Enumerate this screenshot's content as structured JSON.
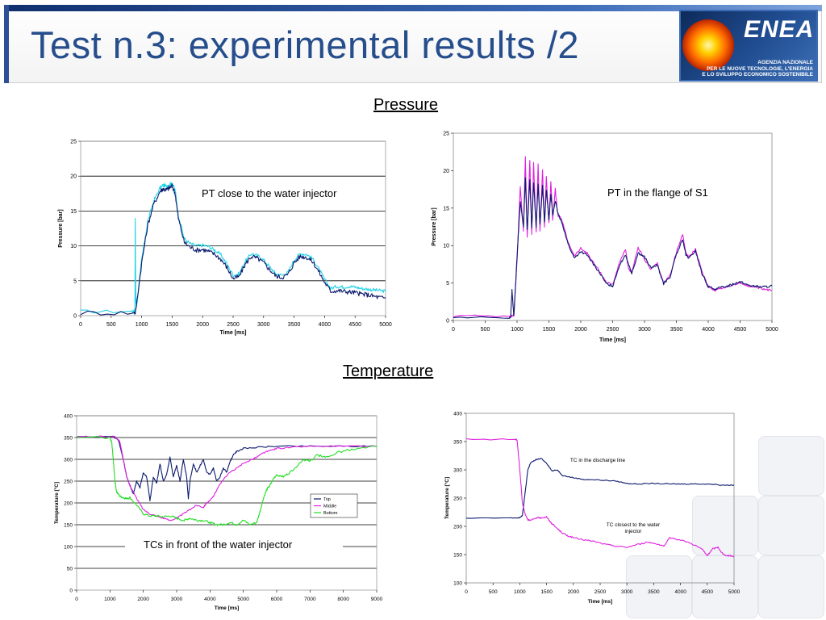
{
  "slide": {
    "title": "Test n.3: experimental results /2",
    "logo_text": "ENEA",
    "logo_subtext": [
      "AGENZIA NAZIONALE",
      "PER LE NUOVE TECNOLOGIE, L'ENERGIA",
      "E LO SVILUPPO ECONOMICO SOSTENIBILE"
    ],
    "sections": {
      "pressure": "Pressure",
      "temperature": "Temperature"
    }
  },
  "colors": {
    "title": "#264d8c",
    "navy": "#0b1a6e",
    "cyan": "#22d3e6",
    "magenta": "#e020e0",
    "green": "#22dd22"
  },
  "chart_data": [
    {
      "type": "line",
      "xlabel": "Time [ms]",
      "ylabel": "Pressure [bar]",
      "xlim": [
        0,
        5000
      ],
      "ylim": [
        0,
        25
      ],
      "xticks": [
        0,
        500,
        1000,
        1500,
        2000,
        2500,
        3000,
        3500,
        4000,
        4500,
        5000
      ],
      "yticks": [
        0,
        5,
        10,
        15,
        20,
        25
      ],
      "grid": "horizontal",
      "annotation": "PT close to the water injector",
      "series": [
        {
          "color": "#22d3e6",
          "noise": 0.25,
          "x": [
            0,
            850,
            880,
            890,
            895,
            905,
            920,
            1000,
            1100,
            1200,
            1300,
            1350,
            1400,
            1450,
            1500,
            1550,
            1600,
            1700,
            1800,
            1900,
            2000,
            2100,
            2200,
            2300,
            2400,
            2500,
            2600,
            2700,
            2800,
            2900,
            3000,
            3100,
            3200,
            3300,
            3400,
            3500,
            3600,
            3700,
            3800,
            3900,
            4000,
            4100,
            4200,
            4300,
            4400,
            4500,
            4600,
            4700,
            4800,
            4900,
            5000
          ],
          "y": [
            0.6,
            0.6,
            0.6,
            1.0,
            14.0,
            2.0,
            1.5,
            8.0,
            13.5,
            16.5,
            18.3,
            18.7,
            18.6,
            18.8,
            19.0,
            18.0,
            14.5,
            11.0,
            10.3,
            10.0,
            10.1,
            9.9,
            9.4,
            8.7,
            7.4,
            5.8,
            6.0,
            7.8,
            8.9,
            8.6,
            8.0,
            7.0,
            6.0,
            5.8,
            6.2,
            8.0,
            8.9,
            8.8,
            8.2,
            6.8,
            5.2,
            3.9,
            4.2,
            4.1,
            4.2,
            4.1,
            3.9,
            3.8,
            3.7,
            3.6,
            3.5
          ]
        },
        {
          "color": "#0b1a6e",
          "noise": 0.35,
          "x": [
            0,
            880,
            900,
            1000,
            1100,
            1200,
            1300,
            1350,
            1400,
            1450,
            1500,
            1550,
            1600,
            1700,
            1800,
            1900,
            2000,
            2100,
            2200,
            2300,
            2400,
            2500,
            2600,
            2700,
            2800,
            2900,
            3000,
            3100,
            3200,
            3300,
            3400,
            3500,
            3600,
            3700,
            3800,
            3900,
            4000,
            4100,
            4200,
            4300,
            4400,
            4500,
            4600,
            4700,
            4800,
            4900,
            5000
          ],
          "y": [
            0.4,
            0.4,
            0.5,
            7.5,
            13.0,
            16.0,
            17.8,
            18.2,
            18.0,
            18.3,
            18.6,
            17.5,
            14.0,
            10.5,
            9.8,
            9.4,
            9.5,
            9.2,
            8.8,
            8.1,
            6.9,
            5.3,
            5.6,
            7.4,
            8.5,
            8.2,
            7.6,
            6.6,
            5.7,
            5.5,
            5.9,
            7.6,
            8.5,
            8.4,
            7.8,
            6.4,
            4.8,
            3.5,
            3.6,
            3.5,
            3.4,
            3.3,
            3.1,
            3.0,
            2.8,
            2.6,
            2.5
          ]
        }
      ]
    },
    {
      "type": "line",
      "xlabel": "Time [ms]",
      "ylabel": "Pressure [bar]",
      "xlim": [
        0,
        5000
      ],
      "ylim": [
        0,
        25
      ],
      "xticks": [
        0,
        500,
        1000,
        1500,
        2000,
        2500,
        3000,
        3500,
        4000,
        4500,
        5000
      ],
      "yticks": [
        0,
        5,
        10,
        15,
        20,
        25
      ],
      "grid": "none",
      "annotation": "PT in the flange of S1",
      "series": [
        {
          "color": "#e020e0",
          "noise": 0.15,
          "x": [
            0,
            900,
            920,
            950,
            1000,
            1050,
            1100,
            1130,
            1160,
            1200,
            1230,
            1260,
            1300,
            1330,
            1360,
            1400,
            1430,
            1460,
            1500,
            1530,
            1560,
            1600,
            1640,
            1700,
            1800,
            1900,
            2000,
            2100,
            2200,
            2300,
            2400,
            2500,
            2600,
            2700,
            2750,
            2800,
            2900,
            3000,
            3100,
            3200,
            3300,
            3400,
            3500,
            3600,
            3650,
            3700,
            3800,
            3900,
            4000,
            4100,
            4200,
            4300,
            4400,
            4500,
            4600,
            4700,
            4800,
            4900,
            5000
          ],
          "y": [
            0.6,
            0.6,
            0.6,
            0.8,
            8.0,
            18.0,
            12.0,
            21.8,
            11.0,
            21.5,
            11.5,
            21.0,
            11.8,
            20.8,
            12.0,
            20.0,
            12.5,
            19.2,
            13.0,
            18.6,
            13.5,
            17.5,
            14.0,
            13.5,
            10.5,
            8.6,
            9.6,
            9.0,
            7.7,
            6.5,
            5.1,
            4.8,
            7.5,
            9.5,
            6.8,
            6.5,
            9.7,
            8.2,
            6.8,
            7.6,
            5.0,
            6.0,
            9.1,
            11.5,
            9.0,
            8.5,
            9.5,
            6.5,
            4.6,
            4.0,
            4.3,
            4.5,
            4.8,
            5.0,
            4.7,
            4.5,
            4.3,
            4.1,
            4.0
          ]
        },
        {
          "color": "#0b1a6e",
          "noise": 0.15,
          "x": [
            0,
            880,
            900,
            920,
            950,
            1000,
            1050,
            1100,
            1130,
            1160,
            1200,
            1230,
            1260,
            1300,
            1330,
            1360,
            1400,
            1430,
            1460,
            1500,
            1530,
            1560,
            1600,
            1640,
            1700,
            1800,
            1900,
            2000,
            2100,
            2200,
            2300,
            2400,
            2500,
            2600,
            2700,
            2800,
            2900,
            3000,
            3100,
            3200,
            3300,
            3400,
            3500,
            3600,
            3650,
            3700,
            3800,
            3900,
            4000,
            4100,
            4200,
            4300,
            4400,
            4500,
            4600,
            4700,
            4800,
            4900,
            5000
          ],
          "y": [
            0.4,
            0.4,
            0.5,
            4.0,
            0.5,
            8.5,
            16.0,
            12.5,
            19.0,
            12.0,
            18.8,
            12.3,
            18.5,
            12.5,
            18.3,
            12.8,
            18.0,
            13.0,
            17.5,
            13.4,
            17.0,
            14.0,
            16.0,
            14.3,
            13.2,
            10.2,
            8.3,
            9.2,
            8.7,
            7.5,
            6.3,
            4.9,
            4.6,
            7.2,
            8.8,
            6.3,
            9.0,
            8.5,
            7.0,
            7.4,
            4.9,
            5.8,
            8.8,
            10.8,
            8.7,
            8.3,
            9.3,
            6.3,
            4.5,
            4.2,
            4.4,
            4.6,
            4.9,
            5.2,
            4.8,
            4.6,
            4.5,
            4.5,
            4.6
          ]
        }
      ]
    },
    {
      "type": "line",
      "xlabel": "Time [ms]",
      "ylabel": "Temperature [°C]",
      "xlim": [
        0,
        9000
      ],
      "ylim": [
        0,
        400
      ],
      "xticks": [
        0,
        1000,
        2000,
        3000,
        4000,
        5000,
        6000,
        7000,
        8000,
        9000
      ],
      "yticks": [
        0,
        50,
        100,
        150,
        200,
        250,
        300,
        350,
        400
      ],
      "grid": "horizontal",
      "annotation": "TCs in front of the water injector",
      "legend": {
        "position": "right",
        "entries": [
          {
            "name": "Top",
            "color": "#0b1a6e"
          },
          {
            "name": "Middle",
            "color": "#e020e0"
          },
          {
            "name": "Bottom",
            "color": "#22dd22"
          }
        ]
      },
      "series": [
        {
          "name": "Top",
          "color": "#0b1a6e",
          "noise": 1.5,
          "x": [
            0,
            1100,
            1250,
            1400,
            1500,
            1600,
            1700,
            1800,
            1900,
            2000,
            2100,
            2200,
            2300,
            2400,
            2500,
            2600,
            2700,
            2800,
            2900,
            3000,
            3100,
            3200,
            3300,
            3350,
            3400,
            3500,
            3600,
            3700,
            3800,
            3900,
            4000,
            4100,
            4200,
            4300,
            4400,
            4500,
            4600,
            4700,
            4800,
            5000,
            5500,
            6000,
            7000,
            8000,
            9000
          ],
          "y": [
            352,
            352,
            345,
            300,
            260,
            240,
            220,
            250,
            235,
            270,
            260,
            205,
            260,
            245,
            290,
            250,
            265,
            305,
            260,
            285,
            250,
            300,
            260,
            210,
            250,
            290,
            270,
            285,
            300,
            270,
            265,
            280,
            250,
            260,
            280,
            270,
            295,
            310,
            318,
            325,
            328,
            330,
            330,
            330,
            330
          ]
        },
        {
          "name": "Middle",
          "color": "#e020e0",
          "noise": 1.5,
          "x": [
            0,
            1150,
            1300,
            1400,
            1500,
            1600,
            1800,
            2000,
            2200,
            2400,
            2600,
            2800,
            3000,
            3200,
            3400,
            3600,
            3800,
            3900,
            4000,
            4100,
            4200,
            4400,
            4600,
            4800,
            5000,
            5200,
            5400,
            5600,
            5800,
            6000,
            6500,
            7000,
            8000,
            9000
          ],
          "y": [
            352,
            352,
            340,
            300,
            260,
            240,
            210,
            185,
            175,
            170,
            165,
            160,
            165,
            175,
            185,
            195,
            190,
            200,
            205,
            215,
            230,
            255,
            270,
            280,
            290,
            298,
            305,
            315,
            320,
            325,
            328,
            330,
            330,
            330
          ]
        },
        {
          "name": "Bottom",
          "color": "#22dd22",
          "noise": 2.5,
          "x": [
            0,
            1000,
            1050,
            1100,
            1150,
            1200,
            1300,
            1400,
            1500,
            1600,
            1800,
            2000,
            2200,
            2400,
            2600,
            2800,
            3000,
            3200,
            3400,
            3600,
            3800,
            4000,
            4200,
            4400,
            4600,
            4800,
            5000,
            5200,
            5400,
            5500,
            5600,
            5700,
            5800,
            5900,
            6000,
            6200,
            6400,
            6600,
            6800,
            7000,
            7200,
            7500,
            8000,
            8500,
            9000
          ],
          "y": [
            350,
            350,
            340,
            300,
            250,
            225,
            215,
            212,
            210,
            212,
            195,
            175,
            170,
            170,
            168,
            170,
            165,
            160,
            165,
            160,
            160,
            155,
            150,
            150,
            155,
            150,
            160,
            150,
            155,
            180,
            210,
            230,
            240,
            255,
            265,
            260,
            270,
            285,
            300,
            295,
            310,
            305,
            320,
            325,
            330
          ]
        }
      ]
    },
    {
      "type": "line",
      "xlabel": "Time [ms]",
      "ylabel": "Temperature [°C]",
      "xlim": [
        0,
        5000
      ],
      "ylim": [
        100,
        400
      ],
      "xticks": [
        0,
        500,
        1000,
        1500,
        2000,
        2500,
        3000,
        3500,
        4000,
        4500,
        5000
      ],
      "yticks": [
        100,
        150,
        200,
        250,
        300,
        350,
        400
      ],
      "grid": "none",
      "annotations": [
        "TC in the discharge line",
        "TC closest to the water injector"
      ],
      "series": [
        {
          "color": "#0b1a6e",
          "noise": 0.8,
          "x": [
            0,
            800,
            1000,
            1050,
            1100,
            1150,
            1200,
            1300,
            1400,
            1500,
            1600,
            1700,
            1800,
            2000,
            2200,
            2500,
            2800,
            3000,
            3200,
            3500,
            3800,
            4000,
            4200,
            4500,
            4800,
            5000
          ],
          "y": [
            214,
            215,
            215,
            220,
            260,
            300,
            312,
            318,
            320,
            312,
            298,
            300,
            290,
            286,
            283,
            282,
            280,
            276,
            275,
            276,
            275,
            275,
            275,
            275,
            273,
            273
          ]
        },
        {
          "color": "#e020e0",
          "noise": 1.2,
          "x": [
            0,
            900,
            950,
            1000,
            1050,
            1100,
            1150,
            1200,
            1300,
            1400,
            1500,
            1550,
            1600,
            1700,
            1800,
            1900,
            2000,
            2200,
            2400,
            2600,
            2800,
            3000,
            3200,
            3400,
            3600,
            3700,
            3800,
            4000,
            4200,
            4400,
            4500,
            4600,
            4700,
            4800,
            4900,
            5000
          ],
          "y": [
            354,
            354,
            353,
            300,
            240,
            222,
            212,
            210,
            215,
            215,
            217,
            210,
            205,
            196,
            188,
            183,
            180,
            176,
            173,
            168,
            165,
            163,
            168,
            172,
            168,
            165,
            180,
            176,
            170,
            160,
            148,
            160,
            163,
            150,
            148,
            147
          ]
        }
      ]
    }
  ]
}
